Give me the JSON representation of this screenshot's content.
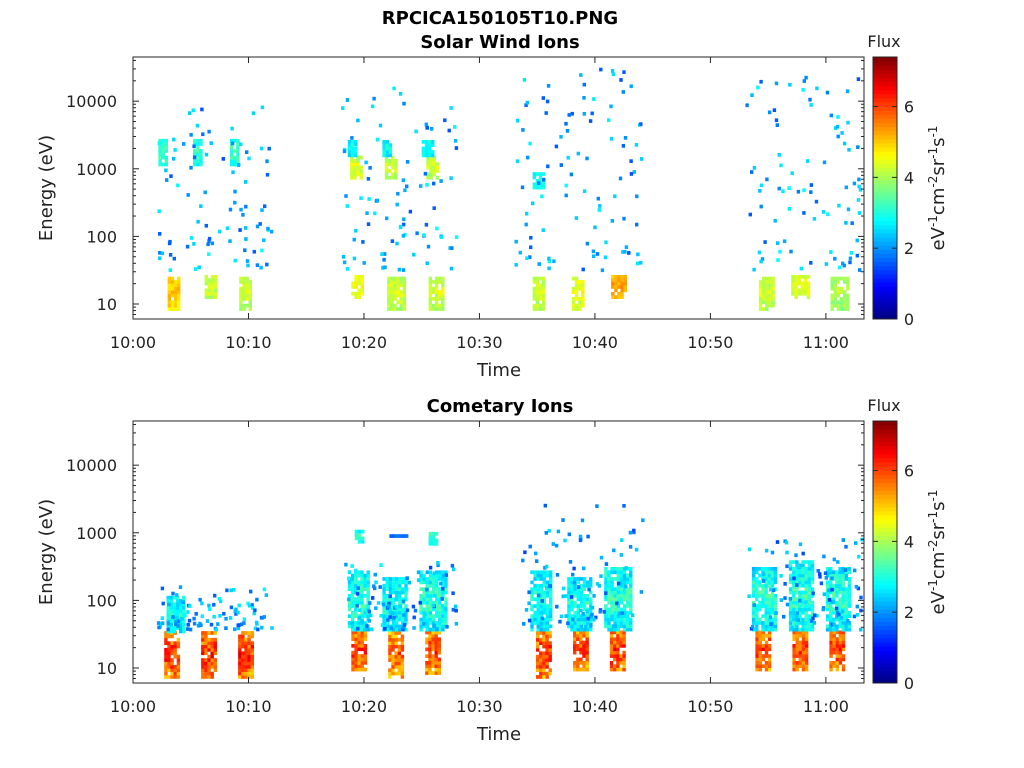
{
  "figure_title": "RPCICA150105T10.PNG",
  "chart_data": [
    {
      "type": "heatmap",
      "title": "Solar Wind Ions",
      "xlabel": "Time",
      "ylabel": "Energy (eV)",
      "x_ticks": [
        "10:00",
        "10:10",
        "10:20",
        "10:30",
        "10:40",
        "10:50",
        "11:00"
      ],
      "x_range_min": [
        0,
        63.3
      ],
      "y_scale": "log",
      "y_ticks": [
        "10",
        "100",
        "1000",
        "10000"
      ],
      "ylim": [
        6,
        45000
      ],
      "colorbar": {
        "label": "Flux",
        "unit": "eV-1cm-2sr-1s-1",
        "ticks": [
          "0",
          "2",
          "4",
          "6"
        ],
        "range": [
          0,
          7.4
        ],
        "colormap": "jet"
      },
      "clusters": [
        {
          "t": [
            3.0,
            4.0
          ],
          "e": [
            8,
            25
          ],
          "flux": [
            4.4,
            5.4
          ]
        },
        {
          "t": [
            6.2,
            7.2
          ],
          "e": [
            12,
            25
          ],
          "flux": [
            3.8,
            4.6
          ]
        },
        {
          "t": [
            9.2,
            10.2
          ],
          "e": [
            8,
            25
          ],
          "flux": [
            3.8,
            4.6
          ]
        },
        {
          "t": [
            18.9,
            19.9
          ],
          "e": [
            12,
            25
          ],
          "flux": [
            4.2,
            4.8
          ]
        },
        {
          "t": [
            22.0,
            23.4
          ],
          "e": [
            8,
            25
          ],
          "flux": [
            3.8,
            4.6
          ]
        },
        {
          "t": [
            25.6,
            26.8
          ],
          "e": [
            8,
            25
          ],
          "flux": [
            3.8,
            4.6
          ]
        },
        {
          "t": [
            34.6,
            35.6
          ],
          "e": [
            8,
            25
          ],
          "flux": [
            3.8,
            4.6
          ]
        },
        {
          "t": [
            38.0,
            39.0
          ],
          "e": [
            8,
            25
          ],
          "flux": [
            4.0,
            4.8
          ]
        },
        {
          "t": [
            41.4,
            42.5
          ],
          "e": [
            12,
            25
          ],
          "flux": [
            4.8,
            5.6
          ]
        },
        {
          "t": [
            54.2,
            55.4
          ],
          "e": [
            8,
            25
          ],
          "flux": [
            3.8,
            4.6
          ]
        },
        {
          "t": [
            57.0,
            58.6
          ],
          "e": [
            12,
            25
          ],
          "flux": [
            4.0,
            4.8
          ]
        },
        {
          "t": [
            60.4,
            61.8
          ],
          "e": [
            8,
            25
          ],
          "flux": [
            3.6,
            4.4
          ]
        },
        {
          "t": [
            2.2,
            2.8
          ],
          "e": [
            1100,
            2600
          ],
          "flux": [
            2.6,
            3.6
          ]
        },
        {
          "t": [
            5.2,
            5.9
          ],
          "e": [
            1100,
            2600
          ],
          "flux": [
            2.6,
            3.6
          ]
        },
        {
          "t": [
            8.4,
            9.2
          ],
          "e": [
            1100,
            2600
          ],
          "flux": [
            2.6,
            3.6
          ]
        },
        {
          "t": [
            18.8,
            19.8
          ],
          "e": [
            700,
            1400
          ],
          "flux": [
            3.8,
            4.8
          ]
        },
        {
          "t": [
            18.6,
            19.4
          ],
          "e": [
            1500,
            2600
          ],
          "flux": [
            2.4,
            3.2
          ]
        },
        {
          "t": [
            21.8,
            22.8
          ],
          "e": [
            700,
            1400
          ],
          "flux": [
            3.8,
            4.6
          ]
        },
        {
          "t": [
            21.6,
            22.4
          ],
          "e": [
            1500,
            2600
          ],
          "flux": [
            2.4,
            3.2
          ]
        },
        {
          "t": [
            25.4,
            26.4
          ],
          "e": [
            700,
            1400
          ],
          "flux": [
            3.8,
            4.6
          ]
        },
        {
          "t": [
            25.0,
            25.9
          ],
          "e": [
            1500,
            2600
          ],
          "flux": [
            2.4,
            3.2
          ]
        },
        {
          "t": [
            34.6,
            35.6
          ],
          "e": [
            500,
            800
          ],
          "flux": [
            2.6,
            3.2
          ]
        }
      ],
      "scatter": [
        {
          "t": [
            2.0,
            12.0
          ],
          "e": [
            30,
            8000
          ],
          "flux": [
            1.5,
            2.8
          ]
        },
        {
          "t": [
            18.0,
            28.0
          ],
          "e": [
            30,
            15000
          ],
          "flux": [
            1.5,
            2.8
          ]
        },
        {
          "t": [
            33.0,
            44.0
          ],
          "e": [
            30,
            28000
          ],
          "flux": [
            1.5,
            2.8
          ]
        },
        {
          "t": [
            53.0,
            63.0
          ],
          "e": [
            30,
            22000
          ],
          "flux": [
            1.5,
            2.8
          ]
        }
      ]
    },
    {
      "type": "heatmap",
      "title": "Cometary Ions",
      "xlabel": "Time",
      "ylabel": "Energy (eV)",
      "x_ticks": [
        "10:00",
        "10:10",
        "10:20",
        "10:30",
        "10:40",
        "10:50",
        "11:00"
      ],
      "x_range_min": [
        0,
        63.3
      ],
      "y_scale": "log",
      "y_ticks": [
        "10",
        "100",
        "1000",
        "10000"
      ],
      "ylim": [
        6,
        45000
      ],
      "colorbar": {
        "label": "Flux",
        "unit": "eV-1cm-2sr-1s-1",
        "ticks": [
          "0",
          "2",
          "4",
          "6"
        ],
        "range": [
          0,
          7.4
        ],
        "colormap": "jet"
      },
      "clusters": [
        {
          "t": [
            2.7,
            3.9
          ],
          "e": [
            7,
            32
          ],
          "flux": [
            4.8,
            6.8
          ]
        },
        {
          "t": [
            5.9,
            7.1
          ],
          "e": [
            7,
            32
          ],
          "flux": [
            4.8,
            6.8
          ]
        },
        {
          "t": [
            9.1,
            10.3
          ],
          "e": [
            7,
            32
          ],
          "flux": [
            4.8,
            6.8
          ]
        },
        {
          "t": [
            18.9,
            20.1
          ],
          "e": [
            9,
            35
          ],
          "flux": [
            4.8,
            6.6
          ]
        },
        {
          "t": [
            22.1,
            23.3
          ],
          "e": [
            7,
            32
          ],
          "flux": [
            4.6,
            6.4
          ]
        },
        {
          "t": [
            25.3,
            26.5
          ],
          "e": [
            8,
            32
          ],
          "flux": [
            4.8,
            6.6
          ]
        },
        {
          "t": [
            34.9,
            36.1
          ],
          "e": [
            7,
            32
          ],
          "flux": [
            4.8,
            6.8
          ]
        },
        {
          "t": [
            38.1,
            39.3
          ],
          "e": [
            9,
            32
          ],
          "flux": [
            4.8,
            6.6
          ]
        },
        {
          "t": [
            41.3,
            42.5
          ],
          "e": [
            9,
            32
          ],
          "flux": [
            4.8,
            6.8
          ]
        },
        {
          "t": [
            53.9,
            55.1
          ],
          "e": [
            9,
            35
          ],
          "flux": [
            4.8,
            6.6
          ]
        },
        {
          "t": [
            57.1,
            58.3
          ],
          "e": [
            9,
            35
          ],
          "flux": [
            4.8,
            6.6
          ]
        },
        {
          "t": [
            60.3,
            61.5
          ],
          "e": [
            9,
            35
          ],
          "flux": [
            4.8,
            6.6
          ]
        },
        {
          "t": [
            2.9,
            4.3
          ],
          "e": [
            33,
            110
          ],
          "flux": [
            2.2,
            3.4
          ]
        },
        {
          "t": [
            18.6,
            20.4
          ],
          "e": [
            35,
            250
          ],
          "flux": [
            2.2,
            3.6
          ]
        },
        {
          "t": [
            21.6,
            23.6
          ],
          "e": [
            35,
            200
          ],
          "flux": [
            2.2,
            3.4
          ]
        },
        {
          "t": [
            24.8,
            27.2
          ],
          "e": [
            35,
            250
          ],
          "flux": [
            2.2,
            3.6
          ]
        },
        {
          "t": [
            34.4,
            36.2
          ],
          "e": [
            35,
            250
          ],
          "flux": [
            2.2,
            3.4
          ]
        },
        {
          "t": [
            37.6,
            39.6
          ],
          "e": [
            35,
            220
          ],
          "flux": [
            2.2,
            3.4
          ]
        },
        {
          "t": [
            40.8,
            43.0
          ],
          "e": [
            35,
            300
          ],
          "flux": [
            2.2,
            3.6
          ]
        },
        {
          "t": [
            53.6,
            55.6
          ],
          "e": [
            35,
            300
          ],
          "flux": [
            2.2,
            3.6
          ]
        },
        {
          "t": [
            56.8,
            58.8
          ],
          "e": [
            35,
            350
          ],
          "flux": [
            2.2,
            3.6
          ]
        },
        {
          "t": [
            60.0,
            62.0
          ],
          "e": [
            35,
            300
          ],
          "flux": [
            2.2,
            3.6
          ]
        },
        {
          "t": [
            19.2,
            20.0
          ],
          "e": [
            700,
            1000
          ],
          "flux": [
            2.6,
            3.8
          ]
        },
        {
          "t": [
            22.2,
            23.6
          ],
          "e": [
            850,
            950
          ],
          "flux": [
            1.6,
            2.4
          ]
        },
        {
          "t": [
            25.6,
            26.4
          ],
          "e": [
            650,
            950
          ],
          "flux": [
            2.6,
            3.8
          ]
        }
      ],
      "scatter": [
        {
          "t": [
            2.0,
            12.0
          ],
          "e": [
            35,
            150
          ],
          "flux": [
            1.5,
            2.8
          ]
        },
        {
          "t": [
            18.0,
            28.0
          ],
          "e": [
            35,
            350
          ],
          "flux": [
            1.4,
            2.8
          ]
        },
        {
          "t": [
            33.5,
            44.0
          ],
          "e": [
            35,
            2700
          ],
          "flux": [
            1.4,
            2.6
          ]
        },
        {
          "t": [
            53.0,
            63.0
          ],
          "e": [
            35,
            800
          ],
          "flux": [
            1.4,
            2.6
          ]
        }
      ]
    }
  ]
}
